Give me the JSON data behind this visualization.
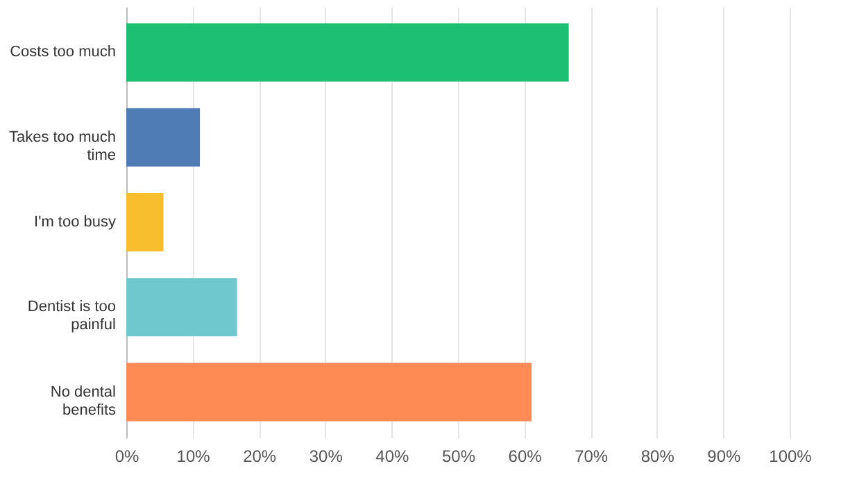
{
  "chart_data": {
    "type": "bar",
    "orientation": "horizontal",
    "categories": [
      "Costs too much",
      "Takes too much time",
      "I'm too busy",
      "Dentist is too painful",
      "No dental benefits"
    ],
    "values": [
      66.7,
      11.1,
      5.6,
      16.7,
      61.1
    ],
    "colors": [
      "#1dbf73",
      "#507cb6",
      "#f9be2e",
      "#6fc8ce",
      "#ff8b54"
    ],
    "xlim": [
      0,
      100
    ],
    "xticks": [
      {
        "value": 0,
        "label": "0%"
      },
      {
        "value": 10,
        "label": "10%"
      },
      {
        "value": 20,
        "label": "20%"
      },
      {
        "value": 30,
        "label": "30%"
      },
      {
        "value": 40,
        "label": "40%"
      },
      {
        "value": 50,
        "label": "50%"
      },
      {
        "value": 60,
        "label": "60%"
      },
      {
        "value": 70,
        "label": "70%"
      },
      {
        "value": 80,
        "label": "80%"
      },
      {
        "value": 90,
        "label": "90%"
      },
      {
        "value": 100,
        "label": "100%"
      }
    ],
    "grid": "x"
  }
}
